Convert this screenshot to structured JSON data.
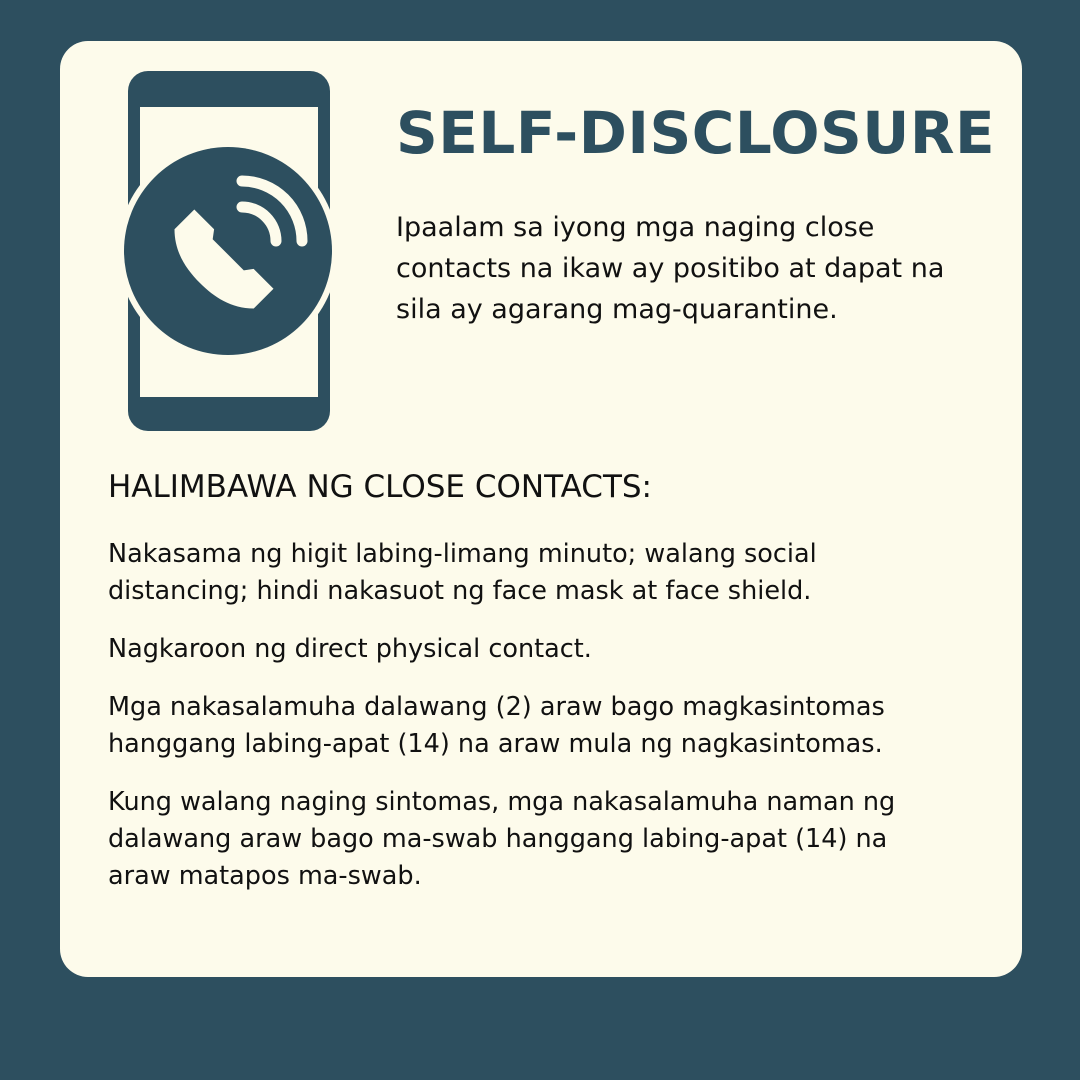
{
  "colors": {
    "background": "#2d4f5f",
    "card": "#fdfbeb",
    "accent": "#2d4f5f",
    "text": "#111111"
  },
  "icon": "phone-call-icon",
  "title": "SELF-DISCLOSURE",
  "intro": "Ipaalam sa iyong mga naging close contacts na ikaw ay positibo at dapat na sila ay agarang mag-quarantine.",
  "section_heading": "HALIMBAWA NG CLOSE CONTACTS:",
  "examples": [
    "Nakasama ng higit labing-limang minuto; walang social distancing; hindi nakasuot ng face mask at face shield.",
    "Nagkaroon ng direct physical contact.",
    "Mga nakasalamuha dalawang (2) araw bago magkasintomas hanggang labing-apat (14) na araw mula ng nagkasintomas.",
    "Kung walang naging sintomas,  mga nakasalamuha naman ng dalawang araw bago ma-swab hanggang labing-apat (14) na araw matapos ma-swab."
  ]
}
